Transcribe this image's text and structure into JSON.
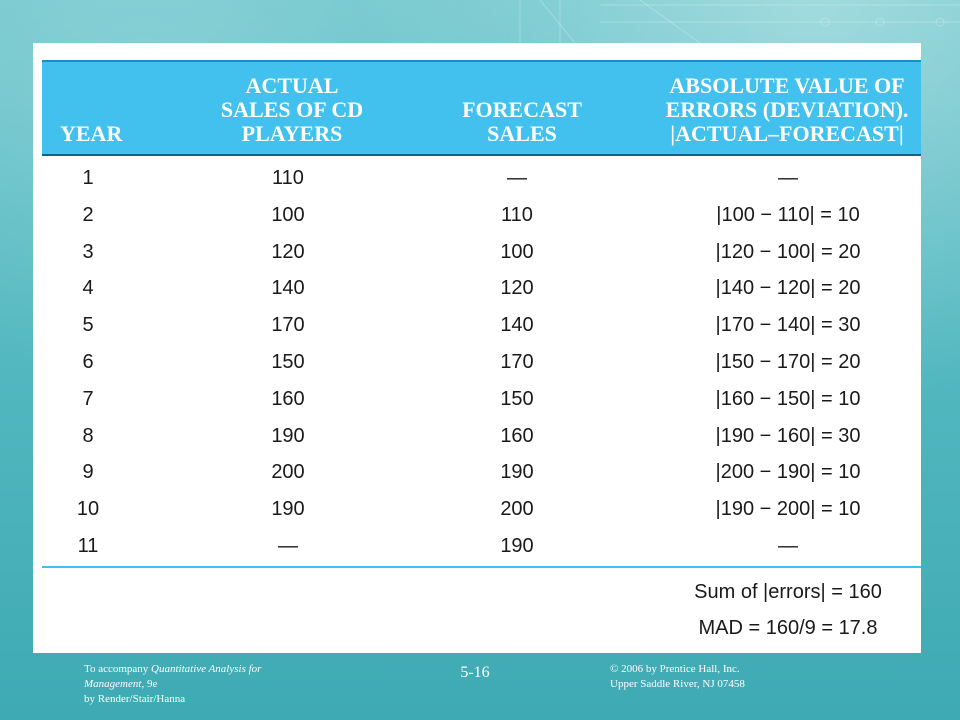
{
  "table": {
    "headers": {
      "year": "YEAR",
      "actual": "ACTUAL\nSALES OF CD\nPLAYERS",
      "forecast": "FORECAST\nSALES",
      "abs_error": "ABSOLUTE VALUE OF\nERRORS (DEVIATION).\n|ACTUAL–FORECAST|"
    },
    "rows": [
      {
        "year": "1",
        "actual": "110",
        "forecast": "—",
        "abs_error": "—"
      },
      {
        "year": "2",
        "actual": "100",
        "forecast": "110",
        "abs_error": "|100 − 110| = 10"
      },
      {
        "year": "3",
        "actual": "120",
        "forecast": "100",
        "abs_error": "|120 − 100| = 20"
      },
      {
        "year": "4",
        "actual": "140",
        "forecast": "120",
        "abs_error": "|140 − 120| = 20"
      },
      {
        "year": "5",
        "actual": "170",
        "forecast": "140",
        "abs_error": "|170 − 140| = 30"
      },
      {
        "year": "6",
        "actual": "150",
        "forecast": "170",
        "abs_error": "|150 − 170| = 20"
      },
      {
        "year": "7",
        "actual": "160",
        "forecast": "150",
        "abs_error": "|160 − 150| = 10"
      },
      {
        "year": "8",
        "actual": "190",
        "forecast": "160",
        "abs_error": "|190 − 160| = 30"
      },
      {
        "year": "9",
        "actual": "200",
        "forecast": "190",
        "abs_error": "|200 − 190| = 10"
      },
      {
        "year": "10",
        "actual": "190",
        "forecast": "200",
        "abs_error": "|190 − 200| = 10"
      },
      {
        "year": "11",
        "actual": "—",
        "forecast": "190",
        "abs_error": "—"
      }
    ],
    "summary": {
      "sum_errors": "Sum of |errors| = 160",
      "mad": "MAD = 160/9 = 17.8"
    }
  },
  "footer": {
    "left_prefix": "To accompany ",
    "left_title": "Quantitative Analysis for Management",
    "left_suffix": ", 9e",
    "left_authors": "by Render/Stair/Hanna",
    "slide_number": "5-16",
    "copyright_line1": "© 2006 by Prentice Hall, Inc.",
    "copyright_line2": "Upper Saddle River,  NJ 07458"
  },
  "colors": {
    "header_band": "#42c1ee",
    "background": "#55b9c1",
    "panel": "#ffffff"
  }
}
